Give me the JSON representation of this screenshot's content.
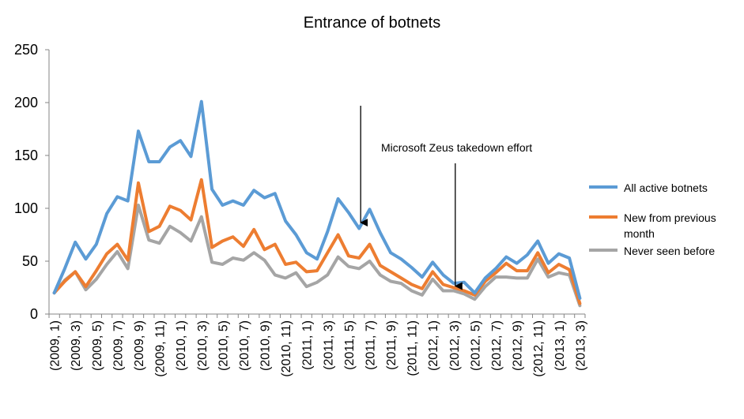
{
  "chart_data": {
    "type": "line",
    "title": "Entrance of botnets",
    "ylim": [
      0,
      250
    ],
    "yticks": [
      0,
      50,
      100,
      150,
      200,
      250
    ],
    "grid": false,
    "legend_position": "right",
    "x": [
      "(2009, 1)",
      "(2009, 2)",
      "(2009, 3)",
      "(2009, 4)",
      "(2009, 5)",
      "(2009, 6)",
      "(2009, 7)",
      "(2009, 8)",
      "(2009, 9)",
      "(2009, 10)",
      "(2009, 11)",
      "(2009, 12)",
      "(2010, 1)",
      "(2010, 2)",
      "(2010, 3)",
      "(2010, 4)",
      "(2010, 5)",
      "(2010, 6)",
      "(2010, 7)",
      "(2010, 8)",
      "(2010, 9)",
      "(2010, 10)",
      "(2010, 11)",
      "(2010, 12)",
      "(2011, 1)",
      "(2011, 2)",
      "(2011, 3)",
      "(2011, 4)",
      "(2011, 5)",
      "(2011, 6)",
      "(2011, 7)",
      "(2011, 8)",
      "(2011, 9)",
      "(2011, 10)",
      "(2011, 11)",
      "(2011, 12)",
      "(2012, 1)",
      "(2012, 2)",
      "(2012, 3)",
      "(2012, 4)",
      "(2012, 5)",
      "(2012, 6)",
      "(2012, 7)",
      "(2012, 8)",
      "(2012, 9)",
      "(2012, 10)",
      "(2012, 11)",
      "(2012, 12)",
      "(2013, 1)",
      "(2013, 2)",
      "(2013, 3)"
    ],
    "xtick_labels": [
      "(2009, 1)",
      "(2009, 3)",
      "(2009, 5)",
      "(2009, 7)",
      "(2009, 9)",
      "(2009, 11)",
      "(2010, 1)",
      "(2010, 3)",
      "(2010, 5)",
      "(2010, 7)",
      "(2010, 9)",
      "(2010, 11)",
      "(2011, 1)",
      "(2011, 3)",
      "(2011, 5)",
      "(2011, 7)",
      "(2011, 9)",
      "(2011, 11)",
      "(2012, 1)",
      "(2012, 3)",
      "(2012, 5)",
      "(2012, 7)",
      "(2012, 9)",
      "(2012, 11)",
      "(2013, 1)",
      "(2013, 3)"
    ],
    "series": [
      {
        "name": "All active botnets",
        "color": "#5B9BD5",
        "values": [
          20,
          43,
          68,
          52,
          66,
          95,
          111,
          107,
          173,
          144,
          144,
          158,
          164,
          149,
          201,
          118,
          103,
          107,
          103,
          117,
          110,
          114,
          88,
          75,
          58,
          52,
          78,
          109,
          96,
          81,
          99,
          77,
          58,
          52,
          44,
          35,
          49,
          37,
          29,
          30,
          20,
          34,
          43,
          54,
          48,
          56,
          69,
          48,
          57,
          53,
          15
        ]
      },
      {
        "name": "New from previous month",
        "color": "#ED7D31",
        "values": [
          20,
          31,
          40,
          26,
          41,
          57,
          66,
          51,
          124,
          78,
          83,
          102,
          98,
          89,
          127,
          63,
          69,
          73,
          64,
          80,
          61,
          66,
          47,
          49,
          40,
          41,
          58,
          75,
          55,
          53,
          66,
          46,
          40,
          34,
          28,
          24,
          40,
          28,
          25,
          22,
          18,
          31,
          39,
          48,
          41,
          41,
          58,
          39,
          47,
          42,
          10
        ]
      },
      {
        "name": "Never seen before",
        "color": "#A5A5A5",
        "values": [
          20,
          32,
          40,
          23,
          33,
          47,
          59,
          43,
          103,
          70,
          67,
          83,
          77,
          69,
          92,
          49,
          47,
          53,
          51,
          58,
          51,
          37,
          34,
          39,
          26,
          30,
          37,
          54,
          45,
          43,
          50,
          37,
          31,
          29,
          22,
          18,
          33,
          22,
          22,
          19,
          14,
          26,
          35,
          35,
          34,
          34,
          52,
          35,
          39,
          37,
          8
        ]
      }
    ],
    "annotations": [
      {
        "text": "Microsoft Zeus takedown effort",
        "x": "(2012, 3)",
        "y": 25
      },
      {
        "text": "",
        "x": "(2011, 6)",
        "y": 85
      }
    ]
  }
}
